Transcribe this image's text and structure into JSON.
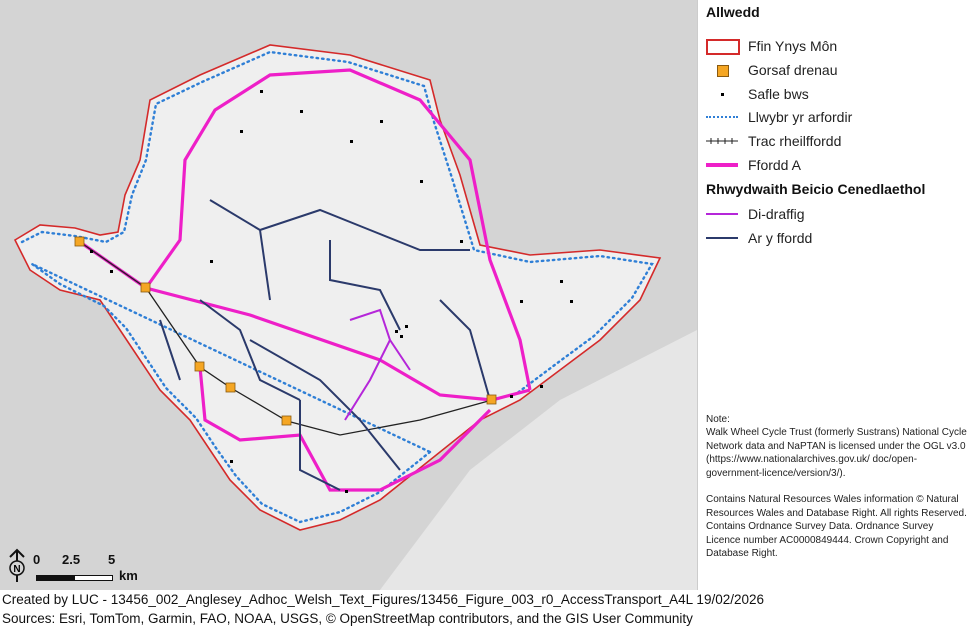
{
  "legend": {
    "title": "Allwedd",
    "items": [
      {
        "label": "Ffin Ynys Môn",
        "icon": "boundary-icon",
        "color": "#d42a2a"
      },
      {
        "label": "Gorsaf drenau",
        "icon": "train-station-icon",
        "color": "#f5a623"
      },
      {
        "label": "Safle bws",
        "icon": "bus-stop-icon",
        "color": "#000000"
      },
      {
        "label": "Llwybr yr arfordir",
        "icon": "coast-path-icon",
        "color": "#2f7fd6"
      },
      {
        "label": "Trac rheilffordd",
        "icon": "railway-icon",
        "color": "#222222"
      },
      {
        "label": "Ffordd A",
        "icon": "a-road-icon",
        "color": "#ee1fc8"
      }
    ],
    "subtitle": "Rhwydwaith Beicio Cenedlaethol",
    "sub_items": [
      {
        "label": "Di-draffig",
        "icon": "traffic-free-route-icon",
        "color": "#b526d9"
      },
      {
        "label": "Ar y ffordd",
        "icon": "on-road-route-icon",
        "color": "#2b3a6b"
      }
    ]
  },
  "note": "Note:\nWalk Wheel Cycle Trust (formerly Sustrans) National Cycle Network data and NaPTAN is licensed under the OGL v3.0 (https://www.nationalarchives.gov.uk/ doc/open-government-licence/version/3/).\n\nContains Natural Resources Wales information © Natural Resources Wales and Database Right. All rights Reserved. Contains Ordnance Survey Data. Ordnance Survey Licence number AC0000849444. Crown Copyright and Database Right.",
  "scale": {
    "labels": [
      "0",
      "2.5",
      "5"
    ],
    "unit": "km",
    "north": "N"
  },
  "footer": {
    "line1": "Created by LUC - 13456_002_Anglesey_Adhoc_Welsh_Text_Figures/13456_Figure_003_r0_AccessTransport_A4L 19/02/2026",
    "line2": "Sources: Esri, TomTom, Garmin, FAO, NOAA, USGS, © OpenStreetMap contributors, and the GIS User Community"
  }
}
